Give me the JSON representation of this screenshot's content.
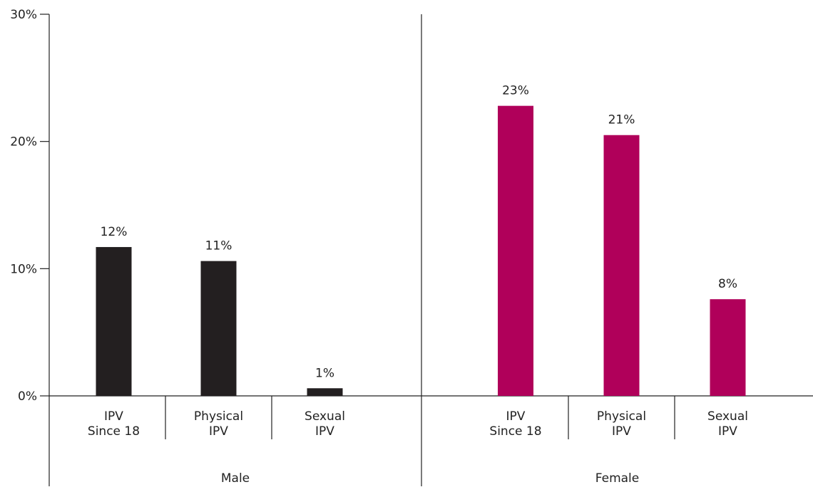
{
  "chart_data": {
    "type": "bar",
    "title": "",
    "xlabel": "",
    "ylabel": "",
    "ylim": [
      0,
      30
    ],
    "yticks": [
      {
        "value": 0,
        "label": "0%"
      },
      {
        "value": 10,
        "label": "10%"
      },
      {
        "value": 20,
        "label": "20%"
      },
      {
        "value": 30,
        "label": "30%"
      }
    ],
    "grid": false,
    "legend": "none",
    "groups": [
      {
        "name": "Male",
        "color": "#231f20",
        "bars": [
          {
            "category": [
              "IPV",
              "Since 18"
            ],
            "value": 11.7,
            "label": "12%"
          },
          {
            "category": [
              "Physical",
              "IPV"
            ],
            "value": 10.6,
            "label": "11%"
          },
          {
            "category": [
              "Sexual",
              "IPV"
            ],
            "value": 0.6,
            "label": "1%"
          }
        ]
      },
      {
        "name": "Female",
        "color": "#b0005a",
        "bars": [
          {
            "category": [
              "IPV",
              "Since 18"
            ],
            "value": 22.8,
            "label": "23%"
          },
          {
            "category": [
              "Physical",
              "IPV"
            ],
            "value": 20.5,
            "label": "21%"
          },
          {
            "category": [
              "Sexual",
              "IPV"
            ],
            "value": 7.6,
            "label": "8%"
          }
        ]
      }
    ]
  }
}
